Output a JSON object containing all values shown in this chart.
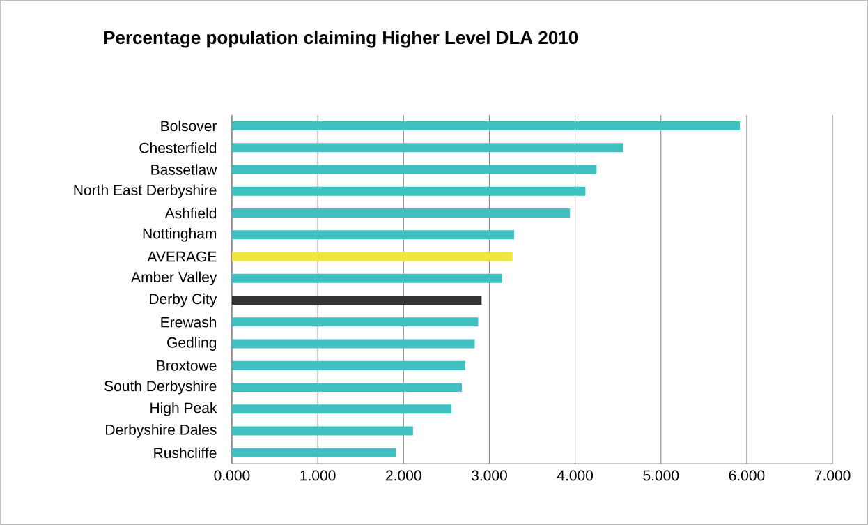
{
  "chart_data": {
    "type": "bar",
    "orientation": "horizontal",
    "title": "Percentage population claiming Higher Level DLA 2010",
    "categories": [
      "Bolsover",
      "Chesterfield",
      "Bassetlaw",
      "North East Derbyshire",
      "Ashfield",
      "Nottingham",
      "AVERAGE",
      "Amber Valley",
      "Derby City",
      "Erewash",
      "Gedling",
      "Broxtowe",
      "South Derbyshire",
      "High Peak",
      "Derbyshire Dales",
      "Rushcliffe"
    ],
    "values": [
      5.92,
      4.56,
      4.25,
      4.12,
      3.94,
      3.29,
      3.27,
      3.15,
      2.91,
      2.87,
      2.83,
      2.72,
      2.68,
      2.56,
      2.11,
      1.91
    ],
    "colors": [
      "#40c0c0",
      "#40c0c0",
      "#40c0c0",
      "#40c0c0",
      "#40c0c0",
      "#40c0c0",
      "#f0e840",
      "#40c0c0",
      "#333333",
      "#40c0c0",
      "#40c0c0",
      "#40c0c0",
      "#40c0c0",
      "#40c0c0",
      "#40c0c0",
      "#40c0c0"
    ],
    "xlim": [
      0,
      7
    ],
    "xticks": [
      {
        "value": 0,
        "label": "0.000"
      },
      {
        "value": 1,
        "label": "1.000"
      },
      {
        "value": 2,
        "label": "2.000"
      },
      {
        "value": 3,
        "label": "3.000"
      },
      {
        "value": 4,
        "label": "4.000"
      },
      {
        "value": 5,
        "label": "5.000"
      },
      {
        "value": 6,
        "label": "6.000"
      },
      {
        "value": 7,
        "label": "7.000"
      }
    ],
    "grid": "x"
  }
}
